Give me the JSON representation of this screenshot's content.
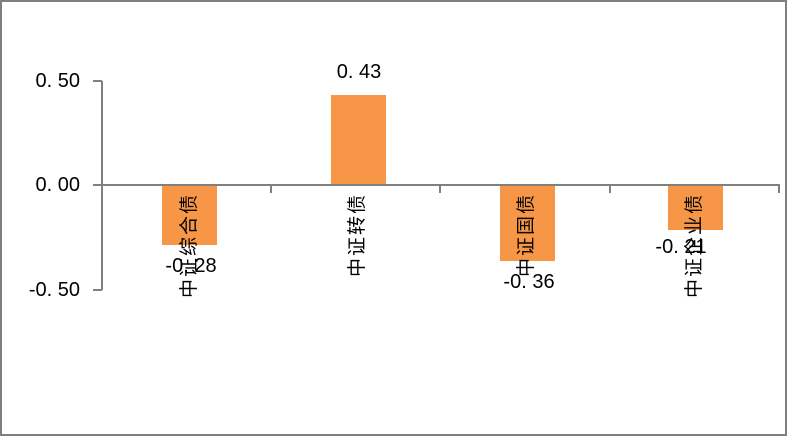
{
  "chart_data": {
    "type": "bar",
    "title": "",
    "xlabel": "",
    "ylabel": "",
    "categories": [
      "中证综合债",
      "中证转债",
      "中证国债",
      "中证企业债"
    ],
    "values": [
      -0.28,
      0.43,
      -0.36,
      -0.21
    ],
    "data_labels": [
      "-0. 28",
      "0. 43",
      "-0. 36",
      "-0. 21"
    ],
    "y_ticks": [
      {
        "label": "0. 50",
        "value": 0.5
      },
      {
        "label": "0. 00",
        "value": 0.0
      },
      {
        "label": "-0. 50",
        "value": -0.5
      }
    ],
    "ylim": [
      -0.5,
      0.5
    ],
    "grid": false,
    "legend_position": "none",
    "colors": {
      "bar_fill": "#F79646",
      "axis_line": "#808080",
      "label_text": "#000000",
      "background": "#FFFFFF",
      "border": "#7F7F7F"
    }
  }
}
